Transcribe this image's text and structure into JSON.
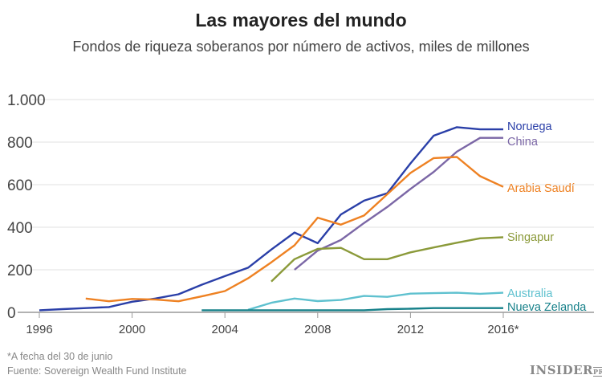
{
  "chart_data": {
    "type": "line",
    "title": "Las mayores del mundo",
    "subtitle": "Fondos de riqueza soberanos por número de activos, miles de millones",
    "xlim": [
      1996,
      2019
    ],
    "ylim": [
      0,
      1000
    ],
    "x_ticks": [
      1996,
      2000,
      2004,
      2008,
      2012,
      2016
    ],
    "x_tick_labels": [
      "1996",
      "2000",
      "2004",
      "2008",
      "2012",
      "2016*"
    ],
    "y_ticks": [
      0,
      200,
      400,
      600,
      800,
      1000
    ],
    "y_tick_labels": [
      "0",
      "200",
      "400",
      "600",
      "800",
      "1.000"
    ],
    "grid": "horizontal",
    "legend": "direct labels at line ends (right)",
    "series": [
      {
        "name": "Noruega",
        "color": "#2a3fa8",
        "x": [
          1996,
          1997,
          1998,
          1999,
          2000,
          2001,
          2002,
          2003,
          2004,
          2005,
          2006,
          2007,
          2008,
          2009,
          2010,
          2011,
          2012,
          2013,
          2014,
          2015,
          2016
        ],
        "values": [
          10,
          15,
          20,
          25,
          50,
          65,
          85,
          130,
          170,
          210,
          295,
          375,
          325,
          460,
          525,
          560,
          700,
          830,
          870,
          860,
          860
        ]
      },
      {
        "name": "China",
        "color": "#7b67a6",
        "x": [
          2007,
          2008,
          2009,
          2010,
          2011,
          2012,
          2013,
          2014,
          2015,
          2016
        ],
        "values": [
          200,
          290,
          340,
          420,
          495,
          580,
          660,
          755,
          820,
          820
        ]
      },
      {
        "name": "Arabia Saudí",
        "color": "#ee8122",
        "x": [
          1998,
          1999,
          2000,
          2001,
          2002,
          2003,
          2004,
          2005,
          2006,
          2007,
          2008,
          2009,
          2010,
          2011,
          2012,
          2013,
          2014,
          2015,
          2016
        ],
        "values": [
          65,
          52,
          63,
          60,
          52,
          75,
          100,
          160,
          235,
          315,
          445,
          412,
          455,
          555,
          655,
          725,
          730,
          640,
          590
        ]
      },
      {
        "name": "Singapur",
        "color": "#8b9a3a",
        "x": [
          2006,
          2007,
          2008,
          2009,
          2010,
          2011,
          2012,
          2013,
          2014,
          2015,
          2016
        ],
        "values": [
          145,
          250,
          298,
          303,
          250,
          250,
          282,
          305,
          327,
          348,
          353
        ]
      },
      {
        "name": "Australia",
        "color": "#5fc1cf",
        "x": [
          2005,
          2006,
          2007,
          2008,
          2009,
          2010,
          2011,
          2012,
          2013,
          2014,
          2015,
          2016
        ],
        "values": [
          12,
          45,
          65,
          53,
          58,
          77,
          73,
          88,
          90,
          92,
          87,
          92
        ]
      },
      {
        "name": "Nueva Zelanda",
        "color": "#17818a",
        "x": [
          2003,
          2004,
          2005,
          2006,
          2007,
          2008,
          2009,
          2010,
          2011,
          2012,
          2013,
          2014,
          2015,
          2016
        ],
        "values": [
          10,
          10,
          10,
          10,
          10,
          10,
          10,
          10,
          15,
          17,
          20,
          20,
          20,
          20
        ]
      }
    ]
  },
  "footnote": "*A fecha del 30 de junio",
  "source": "Fuente: Sovereign Wealth Fund Institute",
  "logo": {
    "main": "INSIDER",
    "suffix": "PRO"
  }
}
